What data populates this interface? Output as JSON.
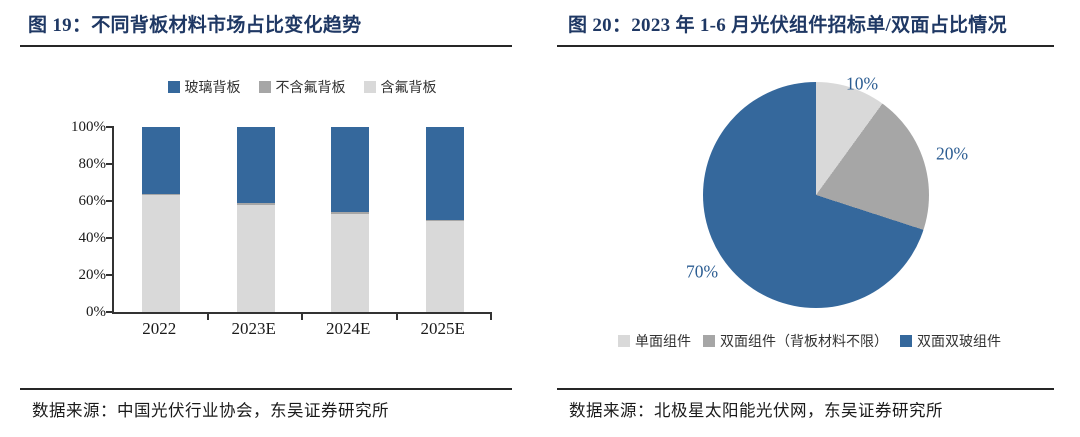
{
  "colors": {
    "accent_navy": "#1F3864",
    "series_blue": "#35689C",
    "series_gray": "#A6A6A6",
    "series_light_gray": "#D9D9D9",
    "rule_dark": "#262626",
    "pie_label_blue": "#2D5E93"
  },
  "left_panel": {
    "title": "图 19：不同背板材料市场占比变化趋势",
    "source": "数据来源：中国光伏行业协会，东吴证券研究所"
  },
  "right_panel": {
    "title": "图 20：2023 年 1-6 月光伏组件招标单/双面占比情况",
    "source": "数据来源：北极星太阳能光伏网，东吴证券研究所"
  },
  "chart_data": [
    {
      "type": "bar",
      "stacked": true,
      "title": "图 19：不同背板材料市场占比变化趋势",
      "categories": [
        "2022",
        "2023E",
        "2024E",
        "2025E"
      ],
      "series": [
        {
          "name": "含氟背板",
          "color": "#D9D9D9",
          "values": [
            63,
            58,
            53,
            49
          ]
        },
        {
          "name": "不含氟背板",
          "color": "#A6A6A6",
          "values": [
            1,
            1,
            1,
            1
          ]
        },
        {
          "name": "玻璃背板",
          "color": "#35689C",
          "values": [
            36,
            41,
            46,
            50
          ]
        }
      ],
      "legend_order": [
        "玻璃背板",
        "不含氟背板",
        "含氟背板"
      ],
      "legend_position": "top",
      "y_ticks": [
        "100%",
        "80%",
        "60%",
        "40%",
        "20%",
        "0%"
      ],
      "ylim": [
        0,
        100
      ],
      "grid": false
    },
    {
      "type": "pie",
      "title": "图 20：2023 年 1-6 月光伏组件招标单/双面占比情况",
      "slices": [
        {
          "label": "单面组件",
          "value": 10,
          "pct_label": "10%",
          "color": "#D9D9D9"
        },
        {
          "label": "双面组件（背板材料不限）",
          "value": 20,
          "pct_label": "20%",
          "color": "#A6A6A6"
        },
        {
          "label": "双面双玻组件",
          "value": 70,
          "pct_label": "70%",
          "color": "#35689C"
        }
      ],
      "start_angle_deg": 0,
      "direction": "clockwise",
      "legend_position": "bottom"
    }
  ]
}
